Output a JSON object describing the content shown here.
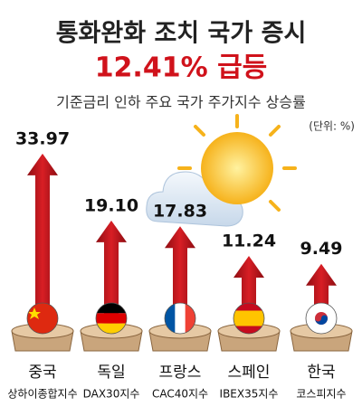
{
  "chart_data": {
    "type": "arrow-bar",
    "title": "통화완화 조치 국가 증시",
    "subtitle": "12.41% 급등",
    "chart_title": "기준금리 인하 주요 국가 주가지수 상승률",
    "unit": "(단위: %)",
    "categories": [
      "중국",
      "독일",
      "프랑스",
      "스페인",
      "한국"
    ],
    "index_names": [
      "상하이종합지수",
      "DAX30지수",
      "CAC40지수",
      "IBEX35지수",
      "코스피지수"
    ],
    "values": [
      33.97,
      19.1,
      17.83,
      11.24,
      9.49
    ],
    "value_labels": [
      "33.97",
      "19.10",
      "17.83",
      "11.24",
      "9.49"
    ],
    "color": "#c8161d"
  }
}
